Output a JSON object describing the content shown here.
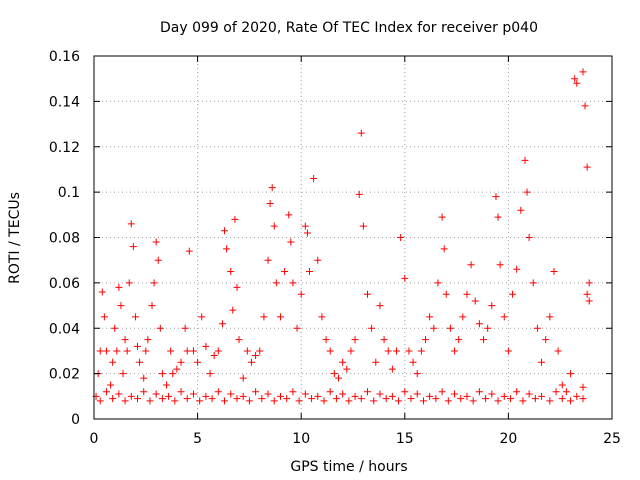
{
  "chart_data": {
    "type": "scatter",
    "title": "Day 099 of 2020, Rate Of TEC Index for receiver p040",
    "xlabel": "GPS time / hours",
    "ylabel": "ROTI / TECUs",
    "xlim": [
      0,
      25
    ],
    "ylim": [
      0,
      0.16
    ],
    "xticks": [
      0,
      5,
      10,
      15,
      20,
      25
    ],
    "yticks": [
      0,
      0.02,
      0.04,
      0.06,
      0.08,
      0.1,
      0.12,
      0.14,
      0.16
    ],
    "xtick_labels": [
      "0",
      "5",
      "10",
      "15",
      "20",
      "25"
    ],
    "ytick_labels": [
      "0",
      "0.02",
      "0.04",
      "0.06",
      "0.08",
      "0.1",
      "0.12",
      "0.14",
      "0.16"
    ],
    "grid": true,
    "marker": "+",
    "color": "#ff0000",
    "series": [
      {
        "name": "ROTI",
        "points": [
          [
            0.1,
            0.01
          ],
          [
            0.2,
            0.02
          ],
          [
            0.3,
            0.03
          ],
          [
            0.4,
            0.056
          ],
          [
            0.5,
            0.045
          ],
          [
            0.6,
            0.03
          ],
          [
            0.8,
            0.015
          ],
          [
            0.9,
            0.025
          ],
          [
            1.0,
            0.04
          ],
          [
            1.1,
            0.03
          ],
          [
            1.2,
            0.058
          ],
          [
            1.3,
            0.05
          ],
          [
            1.4,
            0.02
          ],
          [
            1.5,
            0.035
          ],
          [
            1.6,
            0.03
          ],
          [
            1.7,
            0.06
          ],
          [
            1.8,
            0.086
          ],
          [
            1.9,
            0.076
          ],
          [
            2.0,
            0.045
          ],
          [
            2.1,
            0.032
          ],
          [
            2.2,
            0.025
          ],
          [
            2.4,
            0.018
          ],
          [
            2.5,
            0.03
          ],
          [
            2.6,
            0.035
          ],
          [
            2.8,
            0.05
          ],
          [
            2.9,
            0.06
          ],
          [
            3.0,
            0.078
          ],
          [
            3.1,
            0.07
          ],
          [
            3.2,
            0.04
          ],
          [
            3.3,
            0.02
          ],
          [
            3.5,
            0.015
          ],
          [
            3.7,
            0.03
          ],
          [
            3.8,
            0.02
          ],
          [
            4.0,
            0.022
          ],
          [
            4.2,
            0.025
          ],
          [
            4.4,
            0.04
          ],
          [
            4.5,
            0.03
          ],
          [
            4.6,
            0.074
          ],
          [
            4.8,
            0.03
          ],
          [
            5.0,
            0.025
          ],
          [
            5.2,
            0.045
          ],
          [
            5.4,
            0.032
          ],
          [
            5.6,
            0.02
          ],
          [
            5.8,
            0.028
          ],
          [
            6.0,
            0.03
          ],
          [
            6.2,
            0.042
          ],
          [
            6.3,
            0.083
          ],
          [
            6.4,
            0.075
          ],
          [
            6.6,
            0.065
          ],
          [
            6.7,
            0.048
          ],
          [
            6.8,
            0.088
          ],
          [
            6.9,
            0.058
          ],
          [
            7.0,
            0.035
          ],
          [
            7.2,
            0.018
          ],
          [
            7.4,
            0.03
          ],
          [
            7.6,
            0.025
          ],
          [
            7.8,
            0.028
          ],
          [
            8.0,
            0.03
          ],
          [
            8.2,
            0.045
          ],
          [
            8.4,
            0.07
          ],
          [
            8.5,
            0.095
          ],
          [
            8.6,
            0.102
          ],
          [
            8.7,
            0.085
          ],
          [
            8.8,
            0.06
          ],
          [
            9.0,
            0.045
          ],
          [
            9.2,
            0.065
          ],
          [
            9.4,
            0.09
          ],
          [
            9.5,
            0.078
          ],
          [
            9.6,
            0.06
          ],
          [
            9.8,
            0.04
          ],
          [
            10.0,
            0.055
          ],
          [
            10.2,
            0.085
          ],
          [
            10.3,
            0.082
          ],
          [
            10.4,
            0.065
          ],
          [
            10.6,
            0.106
          ],
          [
            10.8,
            0.07
          ],
          [
            11.0,
            0.045
          ],
          [
            11.2,
            0.035
          ],
          [
            11.4,
            0.03
          ],
          [
            11.6,
            0.02
          ],
          [
            11.8,
            0.018
          ],
          [
            12.0,
            0.025
          ],
          [
            12.2,
            0.022
          ],
          [
            12.4,
            0.03
          ],
          [
            12.6,
            0.035
          ],
          [
            12.8,
            0.099
          ],
          [
            12.9,
            0.126
          ],
          [
            13.0,
            0.085
          ],
          [
            13.2,
            0.055
          ],
          [
            13.4,
            0.04
          ],
          [
            13.6,
            0.025
          ],
          [
            13.8,
            0.05
          ],
          [
            14.0,
            0.035
          ],
          [
            14.2,
            0.03
          ],
          [
            14.4,
            0.022
          ],
          [
            14.6,
            0.03
          ],
          [
            14.8,
            0.08
          ],
          [
            15.0,
            0.062
          ],
          [
            15.2,
            0.03
          ],
          [
            15.4,
            0.025
          ],
          [
            15.6,
            0.02
          ],
          [
            15.8,
            0.03
          ],
          [
            16.0,
            0.035
          ],
          [
            16.2,
            0.045
          ],
          [
            16.4,
            0.04
          ],
          [
            16.6,
            0.06
          ],
          [
            16.8,
            0.089
          ],
          [
            16.9,
            0.075
          ],
          [
            17.0,
            0.055
          ],
          [
            17.2,
            0.04
          ],
          [
            17.4,
            0.03
          ],
          [
            17.6,
            0.035
          ],
          [
            17.8,
            0.045
          ],
          [
            18.0,
            0.055
          ],
          [
            18.2,
            0.068
          ],
          [
            18.4,
            0.052
          ],
          [
            18.6,
            0.042
          ],
          [
            18.8,
            0.035
          ],
          [
            19.0,
            0.04
          ],
          [
            19.2,
            0.05
          ],
          [
            19.4,
            0.098
          ],
          [
            19.5,
            0.089
          ],
          [
            19.6,
            0.068
          ],
          [
            19.8,
            0.045
          ],
          [
            20.0,
            0.03
          ],
          [
            20.2,
            0.055
          ],
          [
            20.4,
            0.066
          ],
          [
            20.6,
            0.092
          ],
          [
            20.8,
            0.114
          ],
          [
            20.9,
            0.1
          ],
          [
            21.0,
            0.08
          ],
          [
            21.2,
            0.06
          ],
          [
            21.4,
            0.04
          ],
          [
            21.6,
            0.025
          ],
          [
            21.8,
            0.035
          ],
          [
            22.0,
            0.045
          ],
          [
            22.2,
            0.065
          ],
          [
            22.4,
            0.03
          ],
          [
            22.6,
            0.015
          ],
          [
            22.8,
            0.012
          ],
          [
            23.0,
            0.02
          ],
          [
            23.2,
            0.15
          ],
          [
            23.3,
            0.148
          ],
          [
            23.6,
            0.153
          ],
          [
            23.7,
            0.138
          ],
          [
            23.8,
            0.111
          ],
          [
            23.9,
            0.06
          ],
          [
            23.9,
            0.052
          ],
          [
            23.8,
            0.055
          ],
          [
            23.6,
            0.014
          ],
          [
            0.3,
            0.008
          ],
          [
            0.6,
            0.012
          ],
          [
            0.9,
            0.009
          ],
          [
            1.2,
            0.011
          ],
          [
            1.5,
            0.008
          ],
          [
            1.8,
            0.01
          ],
          [
            2.1,
            0.009
          ],
          [
            2.4,
            0.012
          ],
          [
            2.7,
            0.008
          ],
          [
            3.0,
            0.011
          ],
          [
            3.3,
            0.009
          ],
          [
            3.6,
            0.01
          ],
          [
            3.9,
            0.008
          ],
          [
            4.2,
            0.012
          ],
          [
            4.5,
            0.009
          ],
          [
            4.8,
            0.011
          ],
          [
            5.1,
            0.008
          ],
          [
            5.4,
            0.01
          ],
          [
            5.7,
            0.009
          ],
          [
            6.0,
            0.012
          ],
          [
            6.3,
            0.008
          ],
          [
            6.6,
            0.011
          ],
          [
            6.9,
            0.009
          ],
          [
            7.2,
            0.01
          ],
          [
            7.5,
            0.008
          ],
          [
            7.8,
            0.012
          ],
          [
            8.1,
            0.009
          ],
          [
            8.4,
            0.011
          ],
          [
            8.7,
            0.008
          ],
          [
            9.0,
            0.01
          ],
          [
            9.3,
            0.009
          ],
          [
            9.6,
            0.012
          ],
          [
            9.9,
            0.008
          ],
          [
            10.2,
            0.011
          ],
          [
            10.5,
            0.009
          ],
          [
            10.8,
            0.01
          ],
          [
            11.1,
            0.008
          ],
          [
            11.4,
            0.012
          ],
          [
            11.7,
            0.009
          ],
          [
            12.0,
            0.011
          ],
          [
            12.3,
            0.008
          ],
          [
            12.6,
            0.01
          ],
          [
            12.9,
            0.009
          ],
          [
            13.2,
            0.012
          ],
          [
            13.5,
            0.008
          ],
          [
            13.8,
            0.011
          ],
          [
            14.1,
            0.009
          ],
          [
            14.4,
            0.01
          ],
          [
            14.7,
            0.008
          ],
          [
            15.0,
            0.012
          ],
          [
            15.3,
            0.009
          ],
          [
            15.6,
            0.011
          ],
          [
            15.9,
            0.008
          ],
          [
            16.2,
            0.01
          ],
          [
            16.5,
            0.009
          ],
          [
            16.8,
            0.012
          ],
          [
            17.1,
            0.008
          ],
          [
            17.4,
            0.011
          ],
          [
            17.7,
            0.009
          ],
          [
            18.0,
            0.01
          ],
          [
            18.3,
            0.008
          ],
          [
            18.6,
            0.012
          ],
          [
            18.9,
            0.009
          ],
          [
            19.2,
            0.011
          ],
          [
            19.5,
            0.008
          ],
          [
            19.8,
            0.01
          ],
          [
            20.1,
            0.009
          ],
          [
            20.4,
            0.012
          ],
          [
            20.7,
            0.008
          ],
          [
            21.0,
            0.011
          ],
          [
            21.3,
            0.009
          ],
          [
            21.6,
            0.01
          ],
          [
            22.0,
            0.008
          ],
          [
            22.3,
            0.012
          ],
          [
            22.6,
            0.009
          ],
          [
            23.0,
            0.008
          ],
          [
            23.3,
            0.01
          ],
          [
            23.6,
            0.009
          ]
        ]
      }
    ]
  }
}
